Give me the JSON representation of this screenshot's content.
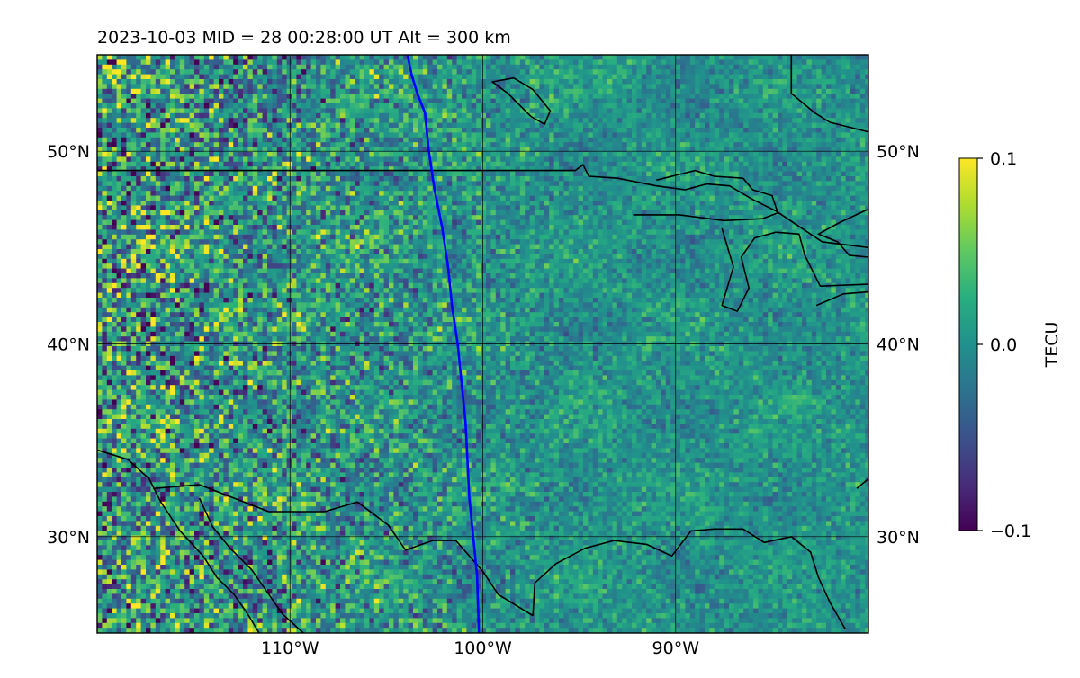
{
  "header": {
    "title": "2023-10-03  MID =  28    00:28:00  UT  Alt = 300 km"
  },
  "map": {
    "extent_lon": [
      -120,
      -80
    ],
    "extent_lat": [
      25,
      55
    ],
    "lat_ticks": [
      {
        "value": 30,
        "label": "30°N"
      },
      {
        "value": 40,
        "label": "40°N"
      },
      {
        "value": 50,
        "label": "50°N"
      }
    ],
    "lon_ticks": [
      {
        "value": -110,
        "label": "110°W"
      },
      {
        "value": -100,
        "label": "100°W"
      },
      {
        "value": -90,
        "label": "90°W"
      }
    ],
    "gridlines": true,
    "terminator_color": "#0000ff",
    "coast_color": "#000000",
    "terminator_path": [
      [
        -103.9,
        55.0
      ],
      [
        -103.7,
        54.0
      ],
      [
        -103.4,
        53.0
      ],
      [
        -103.0,
        52.0
      ],
      [
        -102.8,
        50.0
      ],
      [
        -102.5,
        48.0
      ],
      [
        -102.1,
        46.0
      ],
      [
        -101.8,
        44.0
      ],
      [
        -101.6,
        42.0
      ],
      [
        -101.3,
        40.0
      ],
      [
        -101.1,
        38.0
      ],
      [
        -100.9,
        36.0
      ],
      [
        -100.8,
        34.0
      ],
      [
        -100.7,
        32.0
      ],
      [
        -100.5,
        30.0
      ],
      [
        -100.3,
        28.0
      ],
      [
        -100.2,
        25.0
      ]
    ],
    "coastlines": [
      [
        [
          -120,
          49.0
        ],
        [
          -95.2,
          49.0
        ],
        [
          -94.8,
          49.3
        ],
        [
          -94.5,
          48.7
        ],
        [
          -93.0,
          48.6
        ],
        [
          -91.0,
          48.2
        ],
        [
          -89.5,
          48.0
        ],
        [
          -88.4,
          48.3
        ],
        [
          -87.2,
          48.2
        ],
        [
          -86.0,
          47.5
        ],
        [
          -84.8,
          46.9
        ],
        [
          -83.6,
          46.1
        ],
        [
          -82.4,
          45.3
        ],
        [
          -80,
          45.0
        ]
      ],
      [
        [
          -91.0,
          48.5
        ],
        [
          -89.0,
          49.0
        ],
        [
          -88.0,
          48.7
        ],
        [
          -86.5,
          48.6
        ],
        [
          -86.0,
          48.0
        ],
        [
          -85.0,
          47.7
        ],
        [
          -84.7,
          46.8
        ],
        [
          -85.5,
          46.5
        ],
        [
          -87.5,
          46.4
        ],
        [
          -89.8,
          46.7
        ],
        [
          -92.2,
          46.7
        ]
      ],
      [
        [
          -87.6,
          46.0
        ],
        [
          -87.0,
          44.0
        ],
        [
          -87.6,
          42.0
        ],
        [
          -86.8,
          41.7
        ],
        [
          -86.2,
          42.9
        ],
        [
          -86.6,
          44.5
        ],
        [
          -85.9,
          45.5
        ],
        [
          -84.8,
          45.8
        ]
      ],
      [
        [
          -84.8,
          45.8
        ],
        [
          -83.6,
          45.7
        ],
        [
          -83.3,
          44.6
        ],
        [
          -82.5,
          43.0
        ],
        [
          -80,
          43.1
        ]
      ],
      [
        [
          -80,
          47.0
        ],
        [
          -81.5,
          46.3
        ],
        [
          -82.6,
          45.7
        ],
        [
          -81.6,
          45.3
        ],
        [
          -81.0,
          44.6
        ],
        [
          -80.0,
          44.5
        ]
      ],
      [
        [
          -82.7,
          42.0
        ],
        [
          -81.3,
          42.6
        ],
        [
          -80,
          42.7
        ]
      ],
      [
        [
          -98.4,
          53.8
        ],
        [
          -97.4,
          53.2
        ],
        [
          -96.5,
          52.1
        ],
        [
          -96.8,
          51.4
        ],
        [
          -97.5,
          51.8
        ],
        [
          -98.7,
          53.0
        ],
        [
          -99.5,
          53.6
        ],
        [
          -98.4,
          53.8
        ]
      ],
      [
        [
          -84.0,
          55.0
        ],
        [
          -84.0,
          53.0
        ],
        [
          -82.8,
          52.0
        ],
        [
          -82.0,
          51.5
        ],
        [
          -80,
          51.0
        ]
      ],
      [
        [
          -120,
          34.5
        ],
        [
          -118.4,
          34.0
        ],
        [
          -117.3,
          33.0
        ],
        [
          -116.7,
          31.8
        ],
        [
          -115.7,
          30.3
        ],
        [
          -114.5,
          29.0
        ],
        [
          -113.8,
          27.9
        ],
        [
          -112.9,
          27.0
        ],
        [
          -112.2,
          26.0
        ],
        [
          -111.6,
          25.0
        ]
      ],
      [
        [
          -114.7,
          32.0
        ],
        [
          -114.0,
          30.5
        ],
        [
          -113.1,
          29.4
        ],
        [
          -112.0,
          28.3
        ],
        [
          -111.3,
          27.3
        ],
        [
          -110.4,
          26.0
        ],
        [
          -109.3,
          25.0
        ]
      ],
      [
        [
          -117.1,
          32.5
        ],
        [
          -114.7,
          32.7
        ],
        [
          -111.1,
          31.3
        ],
        [
          -108.2,
          31.3
        ],
        [
          -106.5,
          31.8
        ],
        [
          -104.9,
          30.6
        ],
        [
          -104.0,
          29.3
        ],
        [
          -102.6,
          29.8
        ],
        [
          -101.4,
          29.8
        ],
        [
          -100.0,
          28.2
        ],
        [
          -99.2,
          27.0
        ],
        [
          -97.4,
          25.9
        ]
      ],
      [
        [
          -97.4,
          25.9
        ],
        [
          -97.3,
          27.6
        ],
        [
          -96.2,
          28.6
        ],
        [
          -94.7,
          29.4
        ],
        [
          -93.2,
          29.8
        ],
        [
          -91.5,
          29.6
        ],
        [
          -90.2,
          29.0
        ],
        [
          -89.2,
          30.3
        ],
        [
          -88.0,
          30.4
        ],
        [
          -86.5,
          30.4
        ],
        [
          -85.4,
          29.7
        ],
        [
          -84.0,
          30.0
        ],
        [
          -83.0,
          29.2
        ],
        [
          -82.6,
          27.9
        ],
        [
          -82.0,
          26.6
        ],
        [
          -81.2,
          25.2
        ]
      ],
      [
        [
          -80.6,
          32.5
        ],
        [
          -80.0,
          33.0
        ]
      ]
    ]
  },
  "colorbar": {
    "label": "TECU",
    "vmin": -0.1,
    "vmax": 0.1,
    "ticks": [
      {
        "value": 0.1,
        "label": "0.1"
      },
      {
        "value": 0.0,
        "label": "0.0"
      },
      {
        "value": -0.1,
        "label": "−0.1"
      }
    ],
    "colormap": [
      "#440154",
      "#472d7b",
      "#3b528b",
      "#2c728e",
      "#21918c",
      "#28ae80",
      "#5ec962",
      "#addc30",
      "#fde725"
    ]
  }
}
